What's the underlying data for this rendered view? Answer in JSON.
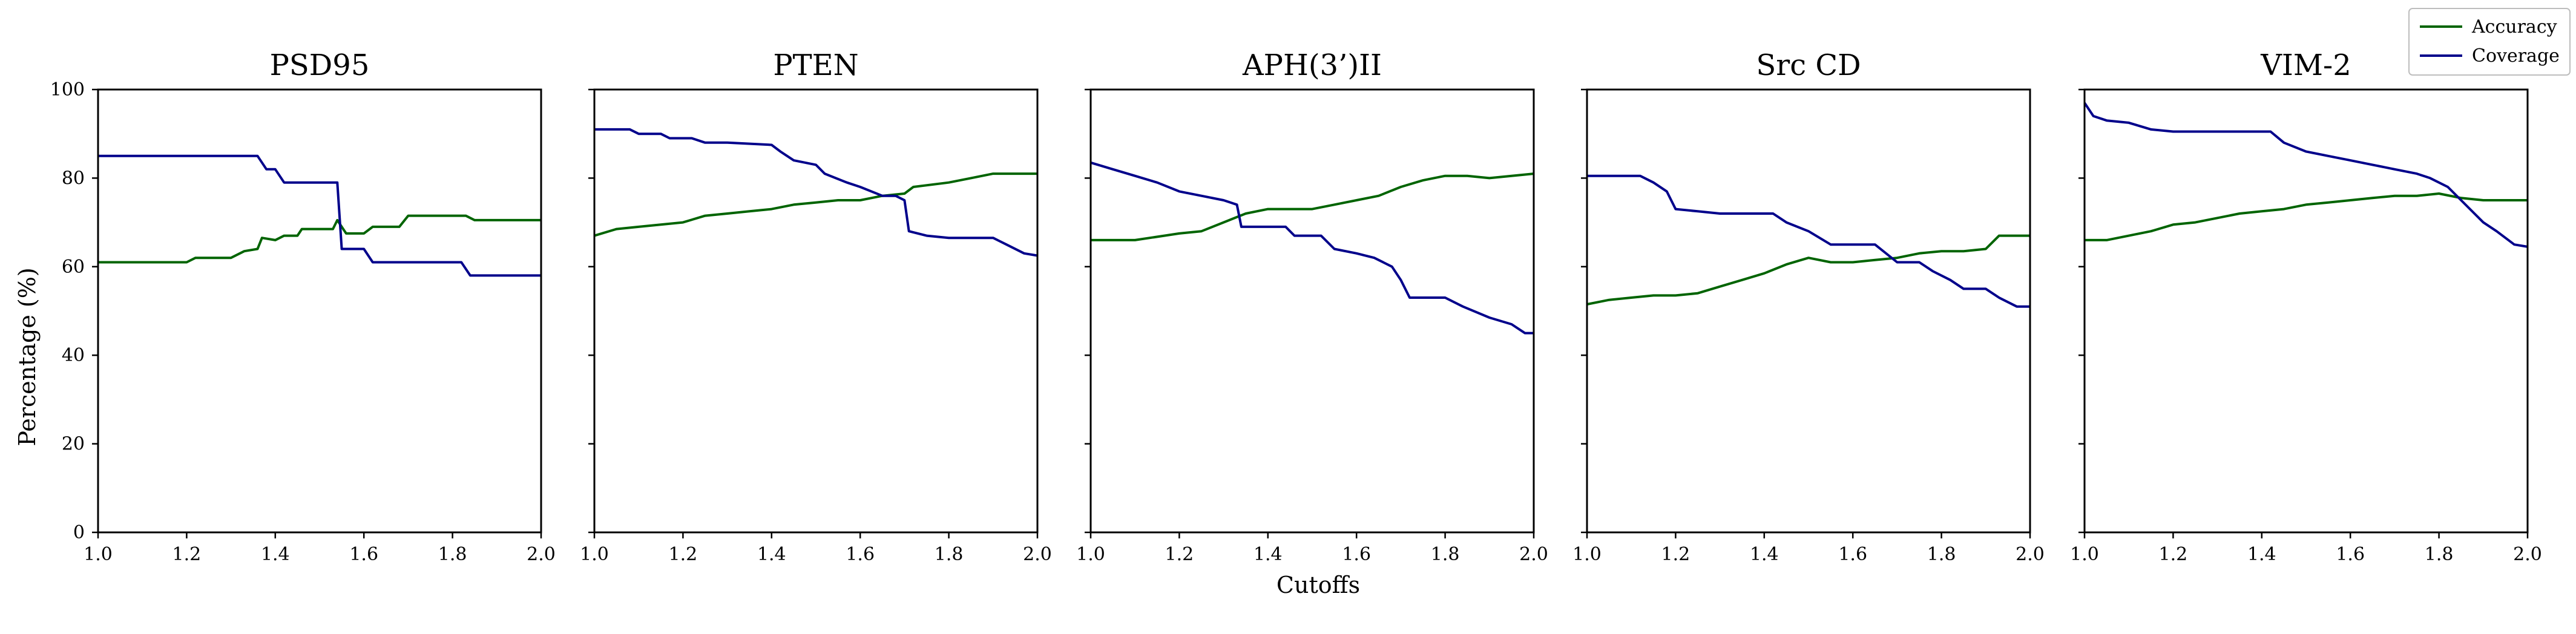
{
  "figure": {
    "ylabel": "Percentage (%)",
    "xlabel": "Cutoffs",
    "legend": {
      "placement": "top-right",
      "entries": [
        "Accuracy",
        "Coverage"
      ]
    },
    "colors": {
      "Accuracy": "#006400",
      "Coverage": "#00008b"
    }
  },
  "chart_data": [
    {
      "type": "line",
      "title": "PSD95",
      "xlim": [
        1.0,
        2.0
      ],
      "ylim": [
        0,
        100
      ],
      "xticks": [
        "1.0",
        "1.2",
        "1.4",
        "1.6",
        "1.8",
        "2.0"
      ],
      "yticks": [
        "0",
        "20",
        "40",
        "60",
        "80",
        "100"
      ],
      "grid": false,
      "series": [
        {
          "name": "Accuracy",
          "points": [
            [
              1.0,
              61
            ],
            [
              1.2,
              61
            ],
            [
              1.22,
              62
            ],
            [
              1.3,
              62
            ],
            [
              1.33,
              63.5
            ],
            [
              1.36,
              64
            ],
            [
              1.37,
              66.5
            ],
            [
              1.4,
              66
            ],
            [
              1.42,
              67
            ],
            [
              1.45,
              67
            ],
            [
              1.46,
              68.5
            ],
            [
              1.53,
              68.5
            ],
            [
              1.54,
              70.5
            ],
            [
              1.56,
              67.5
            ],
            [
              1.6,
              67.5
            ],
            [
              1.62,
              69
            ],
            [
              1.68,
              69
            ],
            [
              1.7,
              71.5
            ],
            [
              1.83,
              71.5
            ],
            [
              1.85,
              70.5
            ],
            [
              2.0,
              70.5
            ]
          ]
        },
        {
          "name": "Coverage",
          "points": [
            [
              1.0,
              85
            ],
            [
              1.36,
              85
            ],
            [
              1.38,
              82
            ],
            [
              1.4,
              82
            ],
            [
              1.42,
              79
            ],
            [
              1.54,
              79
            ],
            [
              1.55,
              64
            ],
            [
              1.6,
              64
            ],
            [
              1.62,
              61
            ],
            [
              1.82,
              61
            ],
            [
              1.84,
              58
            ],
            [
              2.0,
              58
            ]
          ]
        }
      ]
    },
    {
      "type": "line",
      "title": "PTEN",
      "xlim": [
        1.0,
        2.0
      ],
      "ylim": [
        0,
        100
      ],
      "xticks": [
        "1.0",
        "1.2",
        "1.4",
        "1.6",
        "1.8",
        "2.0"
      ],
      "grid": false,
      "series": [
        {
          "name": "Accuracy",
          "points": [
            [
              1.0,
              67
            ],
            [
              1.05,
              68.5
            ],
            [
              1.1,
              69
            ],
            [
              1.15,
              69.5
            ],
            [
              1.2,
              70
            ],
            [
              1.25,
              71.5
            ],
            [
              1.3,
              72
            ],
            [
              1.35,
              72.5
            ],
            [
              1.4,
              73
            ],
            [
              1.45,
              74
            ],
            [
              1.5,
              74.5
            ],
            [
              1.55,
              75
            ],
            [
              1.6,
              75
            ],
            [
              1.65,
              76
            ],
            [
              1.7,
              76.5
            ],
            [
              1.72,
              78
            ],
            [
              1.8,
              79
            ],
            [
              1.85,
              80
            ],
            [
              1.9,
              81
            ],
            [
              1.95,
              81
            ],
            [
              2.0,
              81
            ]
          ]
        },
        {
          "name": "Coverage",
          "points": [
            [
              1.0,
              91
            ],
            [
              1.08,
              91
            ],
            [
              1.1,
              90
            ],
            [
              1.15,
              90
            ],
            [
              1.17,
              89
            ],
            [
              1.22,
              89
            ],
            [
              1.25,
              88
            ],
            [
              1.3,
              88
            ],
            [
              1.4,
              87.5
            ],
            [
              1.42,
              86
            ],
            [
              1.45,
              84
            ],
            [
              1.5,
              83
            ],
            [
              1.52,
              81
            ],
            [
              1.57,
              79
            ],
            [
              1.6,
              78
            ],
            [
              1.65,
              76
            ],
            [
              1.68,
              76
            ],
            [
              1.7,
              75
            ],
            [
              1.71,
              68
            ],
            [
              1.75,
              67
            ],
            [
              1.8,
              66.5
            ],
            [
              1.9,
              66.5
            ],
            [
              1.93,
              65
            ],
            [
              1.97,
              63
            ],
            [
              2.0,
              62.5
            ]
          ]
        }
      ]
    },
    {
      "type": "line",
      "title": "APH(3’)II",
      "xlim": [
        1.0,
        2.0
      ],
      "ylim": [
        0,
        100
      ],
      "xticks": [
        "1.0",
        "1.2",
        "1.4",
        "1.6",
        "1.8",
        "2.0"
      ],
      "grid": false,
      "series": [
        {
          "name": "Accuracy",
          "points": [
            [
              1.0,
              66
            ],
            [
              1.1,
              66
            ],
            [
              1.2,
              67.5
            ],
            [
              1.25,
              68
            ],
            [
              1.3,
              70
            ],
            [
              1.35,
              72
            ],
            [
              1.4,
              73
            ],
            [
              1.5,
              73
            ],
            [
              1.55,
              74
            ],
            [
              1.6,
              75
            ],
            [
              1.65,
              76
            ],
            [
              1.7,
              78
            ],
            [
              1.75,
              79.5
            ],
            [
              1.8,
              80.5
            ],
            [
              1.85,
              80.5
            ],
            [
              1.9,
              80
            ],
            [
              1.95,
              80.5
            ],
            [
              2.0,
              81
            ]
          ]
        },
        {
          "name": "Coverage",
          "points": [
            [
              1.0,
              83.5
            ],
            [
              1.05,
              82
            ],
            [
              1.1,
              80.5
            ],
            [
              1.15,
              79
            ],
            [
              1.2,
              77
            ],
            [
              1.25,
              76
            ],
            [
              1.3,
              75
            ],
            [
              1.33,
              74
            ],
            [
              1.34,
              69
            ],
            [
              1.44,
              69
            ],
            [
              1.46,
              67
            ],
            [
              1.52,
              67
            ],
            [
              1.55,
              64
            ],
            [
              1.6,
              63
            ],
            [
              1.64,
              62
            ],
            [
              1.68,
              60
            ],
            [
              1.7,
              57
            ],
            [
              1.72,
              53
            ],
            [
              1.8,
              53
            ],
            [
              1.84,
              51
            ],
            [
              1.9,
              48.5
            ],
            [
              1.95,
              47
            ],
            [
              1.98,
              45
            ],
            [
              2.0,
              45
            ]
          ]
        }
      ]
    },
    {
      "type": "line",
      "title": "Src CD",
      "xlim": [
        1.0,
        2.0
      ],
      "ylim": [
        0,
        100
      ],
      "xticks": [
        "1.0",
        "1.2",
        "1.4",
        "1.6",
        "1.8",
        "2.0"
      ],
      "grid": false,
      "series": [
        {
          "name": "Accuracy",
          "points": [
            [
              1.0,
              51.5
            ],
            [
              1.05,
              52.5
            ],
            [
              1.1,
              53
            ],
            [
              1.15,
              53.5
            ],
            [
              1.2,
              53.5
            ],
            [
              1.25,
              54
            ],
            [
              1.3,
              55.5
            ],
            [
              1.35,
              57
            ],
            [
              1.4,
              58.5
            ],
            [
              1.45,
              60.5
            ],
            [
              1.5,
              62
            ],
            [
              1.55,
              61
            ],
            [
              1.6,
              61
            ],
            [
              1.65,
              61.5
            ],
            [
              1.7,
              62
            ],
            [
              1.75,
              63
            ],
            [
              1.8,
              63.5
            ],
            [
              1.85,
              63.5
            ],
            [
              1.9,
              64
            ],
            [
              1.93,
              67
            ],
            [
              2.0,
              67
            ]
          ]
        },
        {
          "name": "Coverage",
          "points": [
            [
              1.0,
              80.5
            ],
            [
              1.12,
              80.5
            ],
            [
              1.15,
              79
            ],
            [
              1.18,
              77
            ],
            [
              1.2,
              73
            ],
            [
              1.25,
              72.5
            ],
            [
              1.3,
              72
            ],
            [
              1.42,
              72
            ],
            [
              1.45,
              70
            ],
            [
              1.5,
              68
            ],
            [
              1.55,
              65
            ],
            [
              1.6,
              65
            ],
            [
              1.65,
              65
            ],
            [
              1.7,
              61
            ],
            [
              1.75,
              61
            ],
            [
              1.78,
              59
            ],
            [
              1.82,
              57
            ],
            [
              1.85,
              55
            ],
            [
              1.9,
              55
            ],
            [
              1.93,
              53
            ],
            [
              1.97,
              51
            ],
            [
              2.0,
              51
            ]
          ]
        }
      ]
    },
    {
      "type": "line",
      "title": "VIM-2",
      "xlim": [
        1.0,
        2.0
      ],
      "ylim": [
        0,
        100
      ],
      "xticks": [
        "1.0",
        "1.2",
        "1.4",
        "1.6",
        "1.8",
        "2.0"
      ],
      "grid": false,
      "series": [
        {
          "name": "Accuracy",
          "points": [
            [
              1.0,
              66
            ],
            [
              1.05,
              66
            ],
            [
              1.1,
              67
            ],
            [
              1.15,
              68
            ],
            [
              1.2,
              69.5
            ],
            [
              1.25,
              70
            ],
            [
              1.3,
              71
            ],
            [
              1.35,
              72
            ],
            [
              1.4,
              72.5
            ],
            [
              1.45,
              73
            ],
            [
              1.5,
              74
            ],
            [
              1.55,
              74.5
            ],
            [
              1.6,
              75
            ],
            [
              1.65,
              75.5
            ],
            [
              1.7,
              76
            ],
            [
              1.75,
              76
            ],
            [
              1.8,
              76.5
            ],
            [
              1.85,
              75.5
            ],
            [
              1.9,
              75
            ],
            [
              1.95,
              75
            ],
            [
              2.0,
              75
            ]
          ]
        },
        {
          "name": "Coverage",
          "points": [
            [
              1.0,
              97
            ],
            [
              1.02,
              94
            ],
            [
              1.05,
              93
            ],
            [
              1.1,
              92.5
            ],
            [
              1.15,
              91
            ],
            [
              1.2,
              90.5
            ],
            [
              1.42,
              90.5
            ],
            [
              1.45,
              88
            ],
            [
              1.5,
              86
            ],
            [
              1.55,
              85
            ],
            [
              1.6,
              84
            ],
            [
              1.65,
              83
            ],
            [
              1.7,
              82
            ],
            [
              1.75,
              81
            ],
            [
              1.78,
              80
            ],
            [
              1.82,
              78
            ],
            [
              1.85,
              75
            ],
            [
              1.88,
              72
            ],
            [
              1.9,
              70
            ],
            [
              1.93,
              68
            ],
            [
              1.97,
              65
            ],
            [
              2.0,
              64.5
            ]
          ]
        }
      ]
    }
  ]
}
